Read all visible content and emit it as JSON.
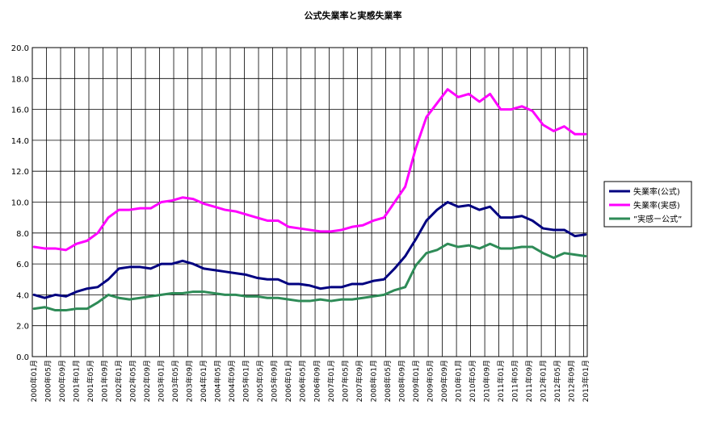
{
  "chart_data": {
    "type": "line",
    "title": "公式失業率と実感失業率",
    "xlabel": "",
    "ylabel": "",
    "ylim": [
      0,
      20
    ],
    "yticks": [
      "0.0",
      "2.0",
      "4.0",
      "6.0",
      "8.0",
      "10.0",
      "12.0",
      "14.0",
      "16.0",
      "18.0",
      "20.0"
    ],
    "grid": true,
    "legend_position": "right",
    "x_start": "2000-01",
    "x_end": "2013-01",
    "x_tick_labels": [
      "2000年01月",
      "2000年05月",
      "2000年09月",
      "2001年01月",
      "2001年05月",
      "2001年09月",
      "2002年01月",
      "2002年05月",
      "2002年09月",
      "2003年01月",
      "2003年05月",
      "2003年09月",
      "2004年01月",
      "2004年05月",
      "2004年09月",
      "2005年01月",
      "2005年05月",
      "2005年09月",
      "2006年01月",
      "2006年05月",
      "2006年09月",
      "2007年01月",
      "2007年05月",
      "2007年09月",
      "2008年01月",
      "2008年05月",
      "2008年09月",
      "2009年01月",
      "2009年05月",
      "2009年09月",
      "2010年01月",
      "2010年05月",
      "2010年09月",
      "2011年01月",
      "2011年05月",
      "2011年09月",
      "2012年01月",
      "2012年05月",
      "2012年09月",
      "2013年01月"
    ],
    "series": [
      {
        "name": "失業率(公式)",
        "color": "#000080",
        "points": [
          [
            "2000-01",
            4.0
          ],
          [
            "2000-04",
            3.8
          ],
          [
            "2000-07",
            4.0
          ],
          [
            "2000-10",
            3.9
          ],
          [
            "2001-01",
            4.2
          ],
          [
            "2001-04",
            4.4
          ],
          [
            "2001-07",
            4.5
          ],
          [
            "2001-10",
            5.0
          ],
          [
            "2002-01",
            5.7
          ],
          [
            "2002-04",
            5.8
          ],
          [
            "2002-07",
            5.8
          ],
          [
            "2002-10",
            5.7
          ],
          [
            "2003-01",
            6.0
          ],
          [
            "2003-04",
            6.0
          ],
          [
            "2003-07",
            6.2
          ],
          [
            "2003-10",
            6.0
          ],
          [
            "2004-01",
            5.7
          ],
          [
            "2004-04",
            5.6
          ],
          [
            "2004-07",
            5.5
          ],
          [
            "2004-10",
            5.4
          ],
          [
            "2005-01",
            5.3
          ],
          [
            "2005-04",
            5.1
          ],
          [
            "2005-07",
            5.0
          ],
          [
            "2005-10",
            5.0
          ],
          [
            "2006-01",
            4.7
          ],
          [
            "2006-04",
            4.7
          ],
          [
            "2006-07",
            4.6
          ],
          [
            "2006-10",
            4.4
          ],
          [
            "2007-01",
            4.5
          ],
          [
            "2007-04",
            4.5
          ],
          [
            "2007-07",
            4.7
          ],
          [
            "2007-10",
            4.7
          ],
          [
            "2008-01",
            4.9
          ],
          [
            "2008-04",
            5.0
          ],
          [
            "2008-07",
            5.7
          ],
          [
            "2008-10",
            6.5
          ],
          [
            "2009-01",
            7.6
          ],
          [
            "2009-04",
            8.8
          ],
          [
            "2009-07",
            9.5
          ],
          [
            "2009-10",
            10.0
          ],
          [
            "2010-01",
            9.7
          ],
          [
            "2010-04",
            9.8
          ],
          [
            "2010-07",
            9.5
          ],
          [
            "2010-10",
            9.7
          ],
          [
            "2011-01",
            9.0
          ],
          [
            "2011-04",
            9.0
          ],
          [
            "2011-07",
            9.1
          ],
          [
            "2011-10",
            8.8
          ],
          [
            "2012-01",
            8.3
          ],
          [
            "2012-04",
            8.2
          ],
          [
            "2012-07",
            8.2
          ],
          [
            "2012-10",
            7.8
          ],
          [
            "2013-01",
            7.9
          ]
        ]
      },
      {
        "name": "失業率(実感)",
        "color": "#ff00ff",
        "points": [
          [
            "2000-01",
            7.1
          ],
          [
            "2000-04",
            7.0
          ],
          [
            "2000-07",
            7.0
          ],
          [
            "2000-10",
            6.9
          ],
          [
            "2001-01",
            7.3
          ],
          [
            "2001-04",
            7.5
          ],
          [
            "2001-07",
            8.0
          ],
          [
            "2001-10",
            9.0
          ],
          [
            "2002-01",
            9.5
          ],
          [
            "2002-04",
            9.5
          ],
          [
            "2002-07",
            9.6
          ],
          [
            "2002-10",
            9.6
          ],
          [
            "2003-01",
            10.0
          ],
          [
            "2003-04",
            10.1
          ],
          [
            "2003-07",
            10.3
          ],
          [
            "2003-10",
            10.2
          ],
          [
            "2004-01",
            9.9
          ],
          [
            "2004-04",
            9.7
          ],
          [
            "2004-07",
            9.5
          ],
          [
            "2004-10",
            9.4
          ],
          [
            "2005-01",
            9.2
          ],
          [
            "2005-04",
            9.0
          ],
          [
            "2005-07",
            8.8
          ],
          [
            "2005-10",
            8.8
          ],
          [
            "2006-01",
            8.4
          ],
          [
            "2006-04",
            8.3
          ],
          [
            "2006-07",
            8.2
          ],
          [
            "2006-10",
            8.1
          ],
          [
            "2007-01",
            8.1
          ],
          [
            "2007-04",
            8.2
          ],
          [
            "2007-07",
            8.4
          ],
          [
            "2007-10",
            8.5
          ],
          [
            "2008-01",
            8.8
          ],
          [
            "2008-04",
            9.0
          ],
          [
            "2008-07",
            10.0
          ],
          [
            "2008-10",
            11.0
          ],
          [
            "2009-01",
            13.5
          ],
          [
            "2009-04",
            15.5
          ],
          [
            "2009-07",
            16.4
          ],
          [
            "2009-10",
            17.3
          ],
          [
            "2010-01",
            16.8
          ],
          [
            "2010-04",
            17.0
          ],
          [
            "2010-07",
            16.5
          ],
          [
            "2010-10",
            17.0
          ],
          [
            "2011-01",
            16.0
          ],
          [
            "2011-04",
            16.0
          ],
          [
            "2011-07",
            16.2
          ],
          [
            "2011-10",
            15.9
          ],
          [
            "2012-01",
            15.0
          ],
          [
            "2012-04",
            14.6
          ],
          [
            "2012-07",
            14.9
          ],
          [
            "2012-10",
            14.4
          ],
          [
            "2013-01",
            14.4
          ]
        ]
      },
      {
        "name": "”実感ー公式”",
        "color": "#2e8b57",
        "points": [
          [
            "2000-01",
            3.1
          ],
          [
            "2000-04",
            3.2
          ],
          [
            "2000-07",
            3.0
          ],
          [
            "2000-10",
            3.0
          ],
          [
            "2001-01",
            3.1
          ],
          [
            "2001-04",
            3.1
          ],
          [
            "2001-07",
            3.5
          ],
          [
            "2001-10",
            4.0
          ],
          [
            "2002-01",
            3.8
          ],
          [
            "2002-04",
            3.7
          ],
          [
            "2002-07",
            3.8
          ],
          [
            "2002-10",
            3.9
          ],
          [
            "2003-01",
            4.0
          ],
          [
            "2003-04",
            4.1
          ],
          [
            "2003-07",
            4.1
          ],
          [
            "2003-10",
            4.2
          ],
          [
            "2004-01",
            4.2
          ],
          [
            "2004-04",
            4.1
          ],
          [
            "2004-07",
            4.0
          ],
          [
            "2004-10",
            4.0
          ],
          [
            "2005-01",
            3.9
          ],
          [
            "2005-04",
            3.9
          ],
          [
            "2005-07",
            3.8
          ],
          [
            "2005-10",
            3.8
          ],
          [
            "2006-01",
            3.7
          ],
          [
            "2006-04",
            3.6
          ],
          [
            "2006-07",
            3.6
          ],
          [
            "2006-10",
            3.7
          ],
          [
            "2007-01",
            3.6
          ],
          [
            "2007-04",
            3.7
          ],
          [
            "2007-07",
            3.7
          ],
          [
            "2007-10",
            3.8
          ],
          [
            "2008-01",
            3.9
          ],
          [
            "2008-04",
            4.0
          ],
          [
            "2008-07",
            4.3
          ],
          [
            "2008-10",
            4.5
          ],
          [
            "2009-01",
            5.9
          ],
          [
            "2009-04",
            6.7
          ],
          [
            "2009-07",
            6.9
          ],
          [
            "2009-10",
            7.3
          ],
          [
            "2010-01",
            7.1
          ],
          [
            "2010-04",
            7.2
          ],
          [
            "2010-07",
            7.0
          ],
          [
            "2010-10",
            7.3
          ],
          [
            "2011-01",
            7.0
          ],
          [
            "2011-04",
            7.0
          ],
          [
            "2011-07",
            7.1
          ],
          [
            "2011-10",
            7.1
          ],
          [
            "2012-01",
            6.7
          ],
          [
            "2012-04",
            6.4
          ],
          [
            "2012-07",
            6.7
          ],
          [
            "2012-10",
            6.6
          ],
          [
            "2013-01",
            6.5
          ]
        ]
      }
    ]
  }
}
